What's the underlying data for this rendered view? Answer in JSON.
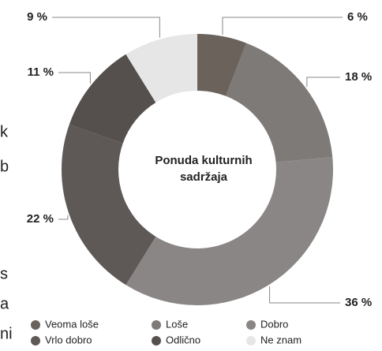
{
  "chart_data": {
    "type": "donut",
    "title_lines": [
      "Ponuda kulturnih",
      "sadržaja"
    ],
    "categories": [
      "Veoma loše",
      "Loše",
      "Dobro",
      "Vrlo dobro",
      "Odlično",
      "Ne znam"
    ],
    "values": [
      6,
      18,
      36,
      22,
      11,
      9
    ],
    "value_labels": [
      "6 %",
      "18 %",
      "36 %",
      "22 %",
      "11 %",
      "9 %"
    ],
    "colors": [
      "#6b625c",
      "#7e7a78",
      "#8a8685",
      "#5e5856",
      "#55504e",
      "#e6e6e6"
    ],
    "legend": "bottom"
  },
  "margin_text": [
    "k",
    "b",
    "s",
    "a",
    "ni"
  ]
}
